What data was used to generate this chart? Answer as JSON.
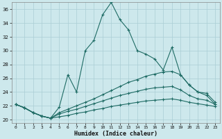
{
  "xlabel": "Humidex (Indice chaleur)",
  "background_color": "#cde8ec",
  "grid_color": "#aacdd4",
  "line_color": "#1e6b64",
  "xlim": [
    -0.5,
    23.5
  ],
  "ylim": [
    19.5,
    37.0
  ],
  "xticks": [
    0,
    1,
    2,
    3,
    4,
    5,
    6,
    7,
    8,
    9,
    10,
    11,
    12,
    13,
    14,
    15,
    16,
    17,
    18,
    19,
    20,
    21,
    22,
    23
  ],
  "yticks": [
    20,
    22,
    24,
    26,
    28,
    30,
    32,
    34,
    36
  ],
  "series1_y": [
    22.2,
    21.7,
    21.0,
    20.5,
    20.2,
    21.8,
    26.5,
    24.0,
    30.0,
    31.5,
    35.2,
    37.0,
    34.5,
    33.0,
    30.0,
    29.5,
    28.8,
    27.2,
    30.5,
    26.5,
    25.0,
    24.0,
    23.8,
    22.5
  ],
  "series2_y": [
    22.2,
    21.7,
    21.0,
    20.5,
    20.2,
    21.0,
    21.5,
    22.0,
    22.5,
    23.0,
    23.6,
    24.2,
    24.8,
    25.4,
    25.8,
    26.3,
    26.6,
    26.9,
    27.0,
    26.5,
    25.0,
    24.0,
    23.5,
    22.2
  ],
  "series3_y": [
    22.2,
    21.7,
    21.0,
    20.5,
    20.2,
    20.8,
    21.2,
    21.5,
    21.9,
    22.3,
    22.7,
    23.1,
    23.5,
    23.8,
    24.1,
    24.4,
    24.6,
    24.7,
    24.8,
    24.3,
    23.5,
    23.0,
    22.8,
    22.2
  ],
  "series4_y": [
    22.2,
    21.7,
    21.0,
    20.5,
    20.2,
    20.4,
    20.6,
    20.9,
    21.1,
    21.4,
    21.6,
    21.9,
    22.1,
    22.3,
    22.5,
    22.7,
    22.8,
    22.9,
    23.0,
    22.8,
    22.5,
    22.3,
    22.1,
    21.9
  ]
}
